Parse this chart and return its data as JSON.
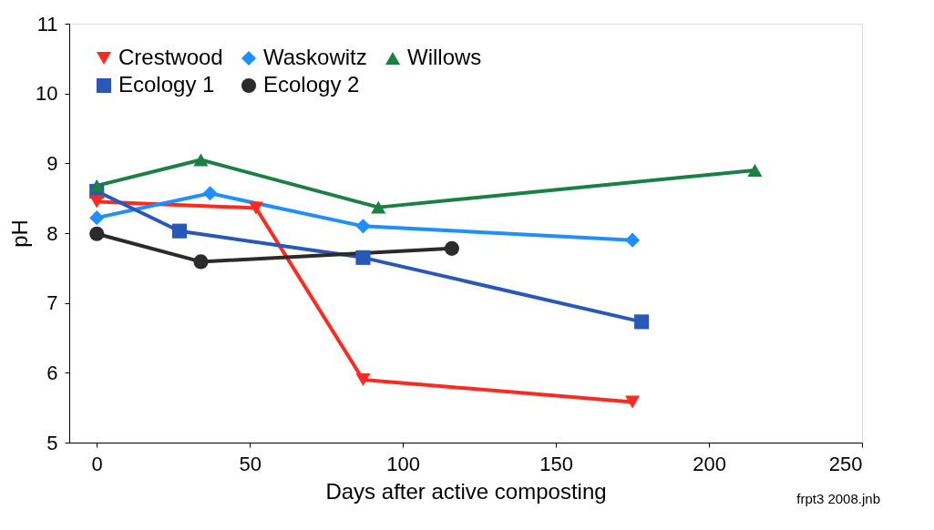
{
  "chart_data": {
    "type": "line",
    "xlabel": "Days after active composting",
    "ylabel": "pH",
    "xlim": [
      -9,
      250
    ],
    "xticks": [
      0,
      50,
      100,
      150,
      200,
      250
    ],
    "ylim": [
      5,
      11
    ],
    "yticks": [
      5,
      6,
      7,
      8,
      9,
      10,
      11
    ],
    "grid": false,
    "legend": "top left",
    "annotations": [
      "frpt3 2008.jnb"
    ],
    "series": [
      {
        "name": "Crestwood",
        "color": "#ff2a1f",
        "marker": "triangle-down",
        "x": [
          0,
          52,
          87,
          175
        ],
        "values": [
          8.45,
          8.36,
          5.9,
          5.58
        ]
      },
      {
        "name": "Waskowitz",
        "color": "#1f8fff",
        "marker": "diamond",
        "x": [
          0,
          37,
          87,
          175
        ],
        "values": [
          8.22,
          8.57,
          8.1,
          7.9
        ]
      },
      {
        "name": "Willows",
        "color": "#1a8044",
        "marker": "triangle",
        "x": [
          0,
          34,
          92,
          215
        ],
        "values": [
          8.68,
          9.05,
          8.37,
          8.9
        ]
      },
      {
        "name": "Ecology 1",
        "color": "#2a58b8",
        "marker": "square",
        "x": [
          0,
          27,
          87,
          178
        ],
        "values": [
          8.6,
          8.03,
          7.65,
          6.73
        ]
      },
      {
        "name": "Ecology 2",
        "color": "#2b2b2b",
        "marker": "circle",
        "x": [
          0,
          34,
          116
        ],
        "values": [
          7.99,
          7.59,
          7.78
        ]
      }
    ]
  }
}
